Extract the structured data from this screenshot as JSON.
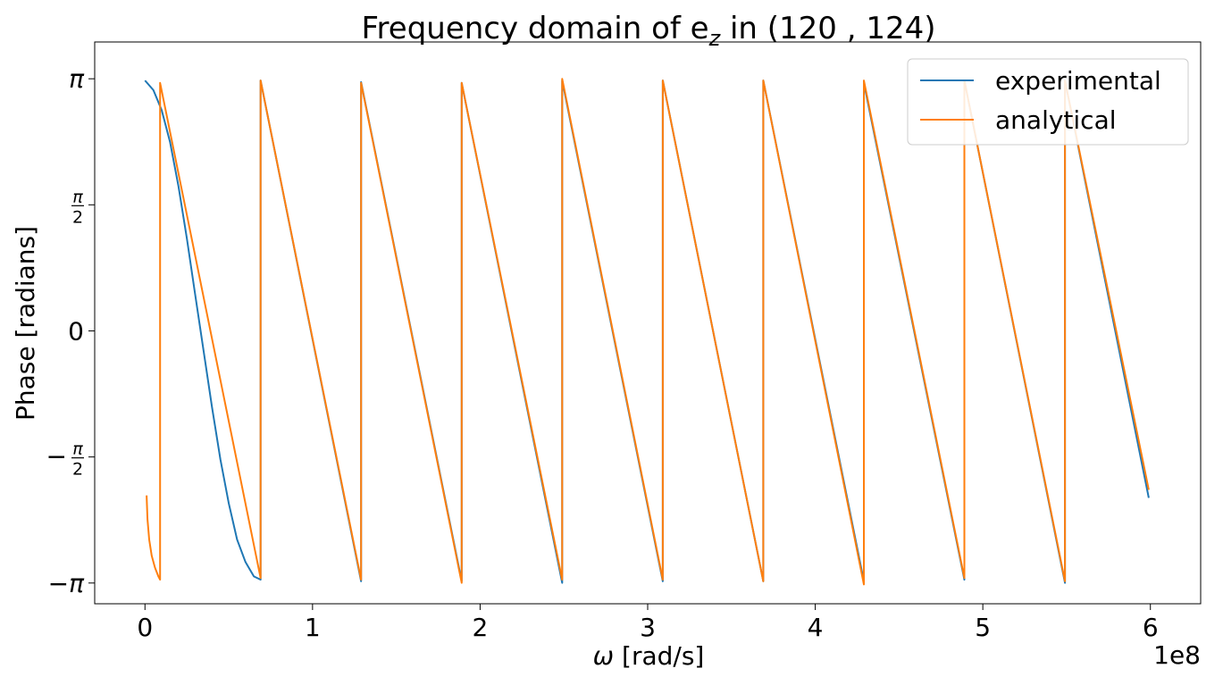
{
  "chart_data": {
    "type": "line",
    "title": "Frequency domain of e",
    "title_sub": "z",
    "title_suffix": " in (120 , 124)",
    "xlabel": "[rad/s]",
    "xlabel_symbol": "ω",
    "ylabel": "Phase [radians]",
    "x_offset_label": "1e8",
    "xlim": [
      -0.3,
      6.3
    ],
    "ylim": [
      -3.4,
      3.6
    ],
    "xticks": [
      {
        "value": 0,
        "label": "0"
      },
      {
        "value": 1,
        "label": "1"
      },
      {
        "value": 2,
        "label": "2"
      },
      {
        "value": 3,
        "label": "3"
      },
      {
        "value": 4,
        "label": "4"
      },
      {
        "value": 5,
        "label": "5"
      },
      {
        "value": 6,
        "label": "6"
      }
    ],
    "yticks": [
      {
        "value": 3.14159,
        "label": "π",
        "kind": "pi"
      },
      {
        "value": 1.5708,
        "label": "π/2",
        "kind": "half"
      },
      {
        "value": 0,
        "label": "0",
        "kind": "plain"
      },
      {
        "value": -1.5708,
        "label": "−π/2",
        "kind": "neghalf"
      },
      {
        "value": -3.14159,
        "label": "−π",
        "kind": "negpi"
      }
    ],
    "grid": false,
    "legend_position": "top-right",
    "series": [
      {
        "name": "experimental",
        "color": "#1f77b4",
        "x": [
          0.0,
          0.05,
          0.1,
          0.15,
          0.2,
          0.25,
          0.3,
          0.35,
          0.4,
          0.45,
          0.5,
          0.55,
          0.6,
          0.65,
          0.69,
          0.69,
          1.29,
          1.29,
          1.89,
          1.89,
          2.49,
          2.49,
          3.09,
          3.09,
          3.69,
          3.69,
          4.29,
          4.29,
          4.89,
          4.89,
          5.49,
          5.49,
          5.99
        ],
        "y": [
          3.12,
          3.0,
          2.75,
          2.35,
          1.8,
          1.15,
          0.45,
          -0.25,
          -0.95,
          -1.6,
          -2.15,
          -2.6,
          -2.88,
          -3.06,
          -3.1,
          3.12,
          -3.12,
          3.1,
          -3.12,
          3.09,
          -3.14,
          3.12,
          -3.12,
          3.12,
          -3.12,
          3.12,
          -3.12,
          3.09,
          -3.1,
          3.12,
          -3.14,
          3.12,
          -2.08
        ]
      },
      {
        "name": "analytical",
        "color": "#ff7f0e",
        "x": [
          0.01,
          0.015,
          0.025,
          0.04,
          0.06,
          0.08,
          0.09,
          0.09,
          0.69,
          0.69,
          1.29,
          1.29,
          1.89,
          1.89,
          2.49,
          2.49,
          3.09,
          3.09,
          3.69,
          3.69,
          4.29,
          4.29,
          4.89,
          4.89,
          5.49,
          5.49,
          5.99
        ],
        "y": [
          -2.05,
          -2.35,
          -2.6,
          -2.8,
          -2.95,
          -3.06,
          -3.1,
          3.09,
          -3.08,
          3.12,
          -3.1,
          3.09,
          -3.14,
          3.09,
          -3.1,
          3.14,
          -3.1,
          3.12,
          -3.12,
          3.12,
          -3.16,
          3.12,
          -3.08,
          3.12,
          -3.12,
          3.12,
          -1.98
        ]
      }
    ]
  }
}
